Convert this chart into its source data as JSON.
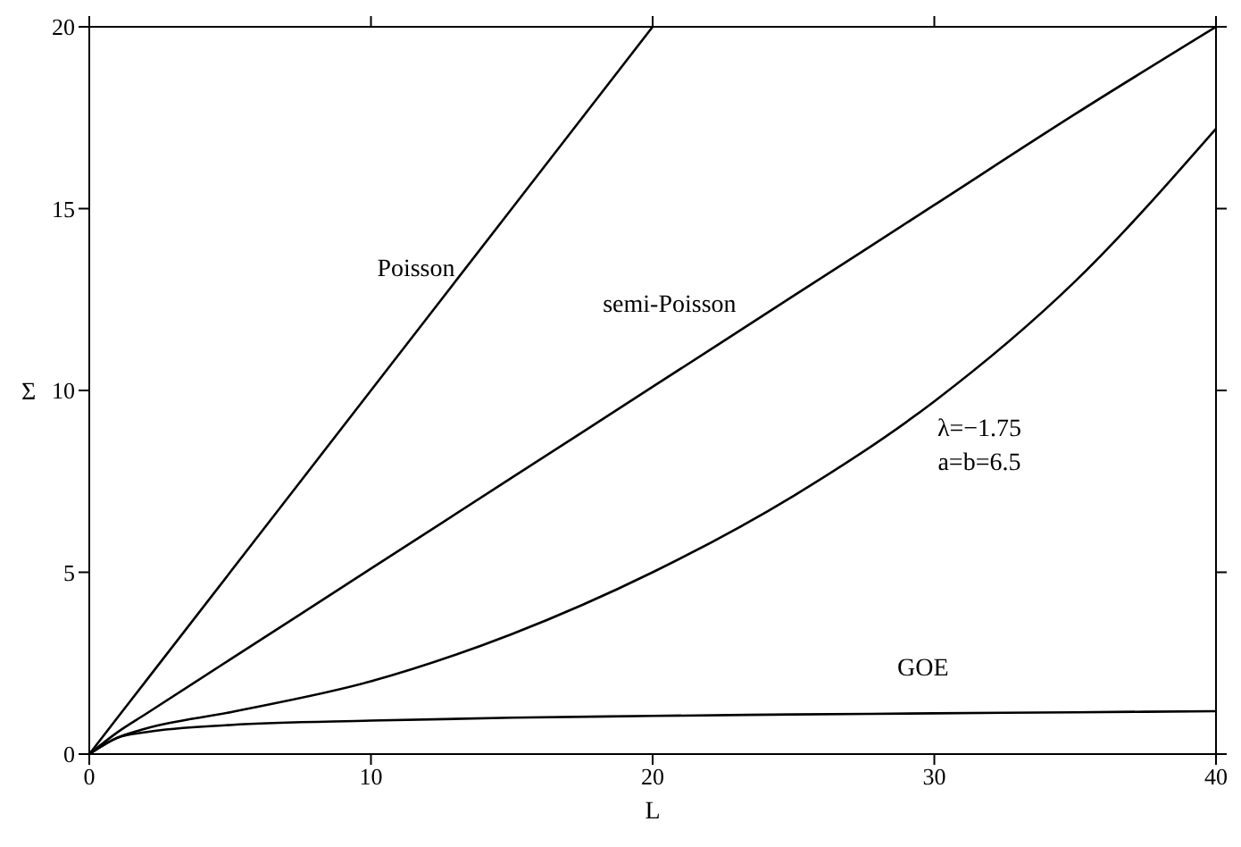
{
  "chart_data": {
    "type": "line",
    "xlabel": "L",
    "ylabel": "Σ",
    "x": [
      0,
      1,
      2,
      5,
      10,
      15,
      20,
      25,
      30,
      35,
      40
    ],
    "series": [
      {
        "name": "Poisson",
        "color": "#000000",
        "values": [
          0,
          1,
          2,
          5,
          10,
          15,
          20,
          null,
          null,
          null,
          null
        ]
      },
      {
        "name": "semi-Poisson",
        "color": "#000000",
        "values": [
          0,
          0.6,
          1.1,
          2.6,
          5.1,
          7.6,
          10.1,
          12.6,
          15.1,
          17.6,
          20
        ]
      },
      {
        "name": "λ=−1.75 a=b=6.5",
        "color": "#000000",
        "values": [
          0,
          0.45,
          0.7,
          1.15,
          2.0,
          3.3,
          5.0,
          7.1,
          9.7,
          13.0,
          17.2
        ]
      },
      {
        "name": "GOE",
        "color": "#000000",
        "values": [
          0,
          0.45,
          0.6,
          0.8,
          0.92,
          1.0,
          1.05,
          1.09,
          1.12,
          1.15,
          1.18
        ]
      }
    ],
    "xlim": [
      0,
      40
    ],
    "xticks": [
      0,
      10,
      20,
      30,
      40
    ],
    "ylim": [
      0,
      20
    ],
    "yticks": [
      0,
      5,
      10,
      15,
      20
    ],
    "grid": false,
    "legend": false,
    "marker": "none",
    "line_style": "solid"
  }
}
